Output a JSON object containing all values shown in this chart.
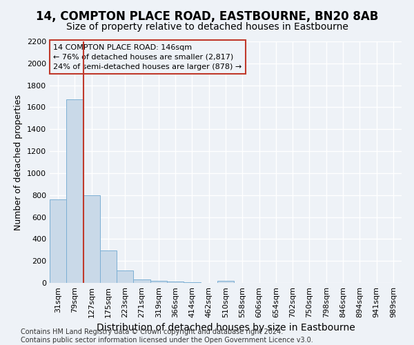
{
  "title1": "14, COMPTON PLACE ROAD, EASTBOURNE, BN20 8AB",
  "title2": "Size of property relative to detached houses in Eastbourne",
  "xlabel": "Distribution of detached houses by size in Eastbourne",
  "ylabel": "Number of detached properties",
  "categories": [
    "31sqm",
    "79sqm",
    "127sqm",
    "175sqm",
    "223sqm",
    "271sqm",
    "319sqm",
    "366sqm",
    "414sqm",
    "462sqm",
    "510sqm",
    "558sqm",
    "606sqm",
    "654sqm",
    "702sqm",
    "750sqm",
    "798sqm",
    "846sqm",
    "894sqm",
    "941sqm",
    "989sqm"
  ],
  "values": [
    760,
    1670,
    800,
    295,
    115,
    30,
    20,
    10,
    5,
    0,
    20,
    0,
    0,
    0,
    0,
    0,
    0,
    0,
    0,
    0,
    0
  ],
  "bar_color": "#c9d9e8",
  "bar_edge_color": "#7bafd4",
  "property_line_x": 1.5,
  "property_line_color": "#c0392b",
  "annotation_text": "14 COMPTON PLACE ROAD: 146sqm\n← 76% of detached houses are smaller (2,817)\n24% of semi-detached houses are larger (878) →",
  "annotation_box_color": "#c0392b",
  "ylim": [
    0,
    2200
  ],
  "yticks": [
    0,
    200,
    400,
    600,
    800,
    1000,
    1200,
    1400,
    1600,
    1800,
    2000,
    2200
  ],
  "footer1": "Contains HM Land Registry data © Crown copyright and database right 2024.",
  "footer2": "Contains public sector information licensed under the Open Government Licence v3.0.",
  "background_color": "#eef2f7",
  "grid_color": "#ffffff",
  "title1_fontsize": 12,
  "title2_fontsize": 10,
  "tick_fontsize": 8,
  "ylabel_fontsize": 9,
  "xlabel_fontsize": 10,
  "footer_fontsize": 7
}
